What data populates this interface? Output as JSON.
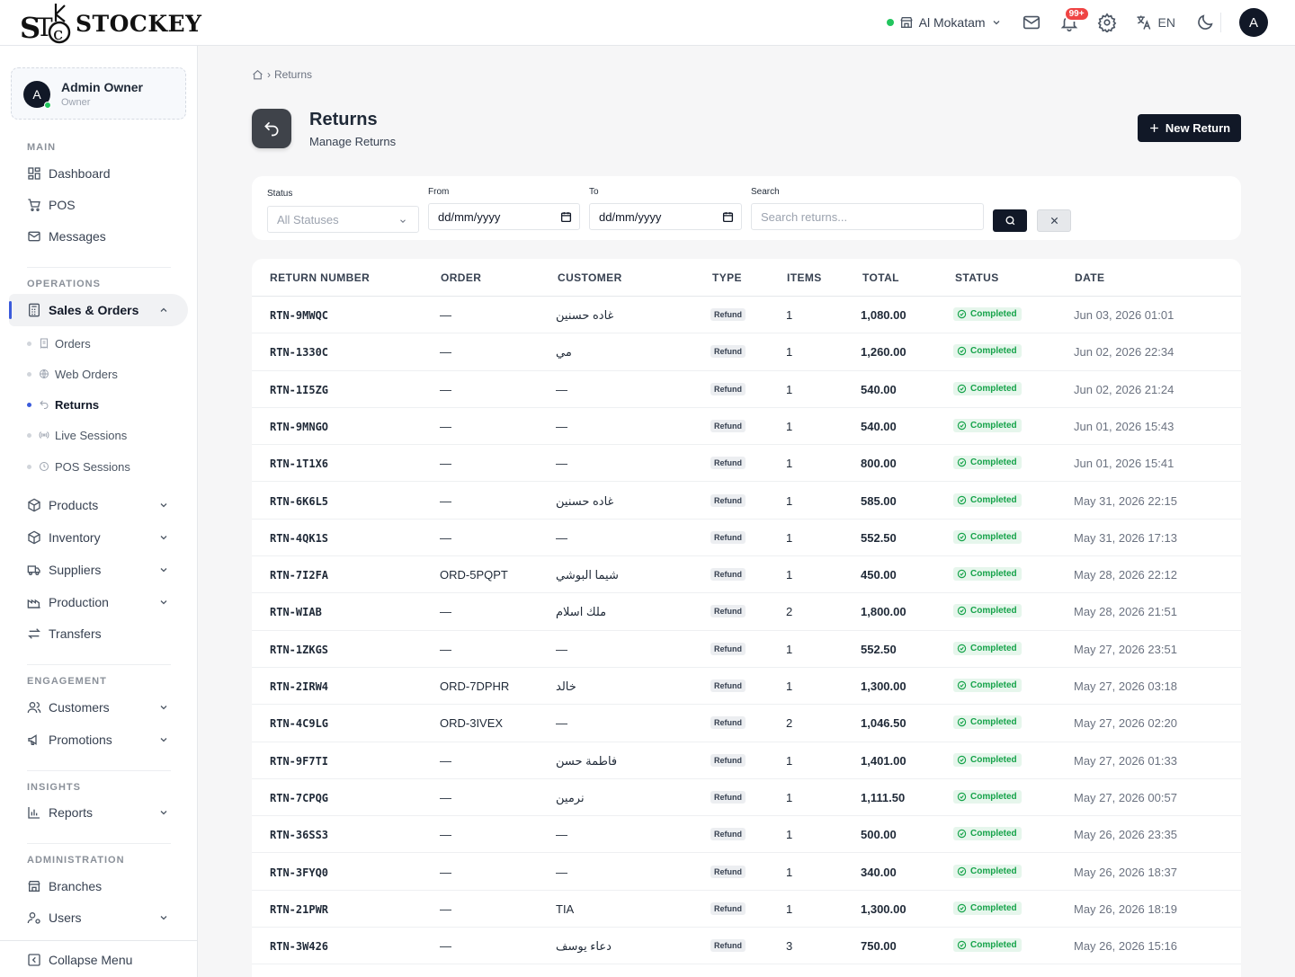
{
  "app": {
    "logo_text": "STOCKEY",
    "logo_mark": "STC"
  },
  "topbar": {
    "branch": "Al Mokatam",
    "notifications_badge": "99+",
    "language": "EN",
    "avatar_initial": "A"
  },
  "sidebar": {
    "user": {
      "initial": "A",
      "name": "Admin Owner",
      "role": "Owner"
    },
    "sections": {
      "main": "MAIN",
      "operations": "OPERATIONS",
      "engagement": "ENGAGEMENT",
      "insights": "INSIGHTS",
      "administration": "ADMINISTRATION"
    },
    "items": {
      "dashboard": "Dashboard",
      "pos": "POS",
      "messages": "Messages",
      "sales_orders": "Sales & Orders",
      "products": "Products",
      "inventory": "Inventory",
      "suppliers": "Suppliers",
      "production": "Production",
      "transfers": "Transfers",
      "customers": "Customers",
      "promotions": "Promotions",
      "reports": "Reports",
      "branches": "Branches",
      "users": "Users",
      "collapse": "Collapse Menu"
    },
    "sub_items": {
      "orders": "Orders",
      "web_orders": "Web Orders",
      "returns": "Returns",
      "live_sessions": "Live Sessions",
      "pos_sessions": "POS Sessions"
    }
  },
  "page": {
    "breadcrumb_current": "Returns",
    "title": "Returns",
    "subtitle": "Manage Returns",
    "new_button": "New Return"
  },
  "filters": {
    "status_label": "Status",
    "status_value": "All Statuses",
    "from_label": "From",
    "from_value": "dd/mm/yyyy",
    "to_label": "To",
    "to_value": "dd/mm/yyyy",
    "search_label": "Search",
    "search_placeholder": "Search returns..."
  },
  "table": {
    "headers": [
      "RETURN NUMBER",
      "ORDER",
      "CUSTOMER",
      "TYPE",
      "ITEMS",
      "TOTAL",
      "STATUS",
      "DATE"
    ],
    "rows": [
      {
        "number": "RTN-9MWQC",
        "order": "—",
        "customer": "غاده حسنين",
        "type": "Refund",
        "items": "1",
        "total": "1,080.00",
        "status": "Completed",
        "date": "Jun 03, 2026 01:01"
      },
      {
        "number": "RTN-1330C",
        "order": "—",
        "customer": "مي",
        "type": "Refund",
        "items": "1",
        "total": "1,260.00",
        "status": "Completed",
        "date": "Jun 02, 2026 22:34"
      },
      {
        "number": "RTN-1I5ZG",
        "order": "—",
        "customer": "—",
        "type": "Refund",
        "items": "1",
        "total": "540.00",
        "status": "Completed",
        "date": "Jun 02, 2026 21:24"
      },
      {
        "number": "RTN-9MNGO",
        "order": "—",
        "customer": "—",
        "type": "Refund",
        "items": "1",
        "total": "540.00",
        "status": "Completed",
        "date": "Jun 01, 2026 15:43"
      },
      {
        "number": "RTN-1T1X6",
        "order": "—",
        "customer": "—",
        "type": "Refund",
        "items": "1",
        "total": "800.00",
        "status": "Completed",
        "date": "Jun 01, 2026 15:41"
      },
      {
        "number": "RTN-6K6L5",
        "order": "—",
        "customer": "غاده حسنين",
        "type": "Refund",
        "items": "1",
        "total": "585.00",
        "status": "Completed",
        "date": "May 31, 2026 22:15"
      },
      {
        "number": "RTN-4QK1S",
        "order": "—",
        "customer": "—",
        "type": "Refund",
        "items": "1",
        "total": "552.50",
        "status": "Completed",
        "date": "May 31, 2026 17:13"
      },
      {
        "number": "RTN-7I2FA",
        "order": "ORD-5PQPT",
        "customer": "شيما البوشي",
        "type": "Refund",
        "items": "1",
        "total": "450.00",
        "status": "Completed",
        "date": "May 28, 2026 22:12"
      },
      {
        "number": "RTN-WIAB",
        "order": "—",
        "customer": "ملك اسلام",
        "type": "Refund",
        "items": "2",
        "total": "1,800.00",
        "status": "Completed",
        "date": "May 28, 2026 21:51"
      },
      {
        "number": "RTN-1ZKGS",
        "order": "—",
        "customer": "—",
        "type": "Refund",
        "items": "1",
        "total": "552.50",
        "status": "Completed",
        "date": "May 27, 2026 23:51"
      },
      {
        "number": "RTN-2IRW4",
        "order": "ORD-7DPHR",
        "customer": "خالد",
        "type": "Refund",
        "items": "1",
        "total": "1,300.00",
        "status": "Completed",
        "date": "May 27, 2026 03:18"
      },
      {
        "number": "RTN-4C9LG",
        "order": "ORD-3IVEX",
        "customer": "—",
        "type": "Refund",
        "items": "2",
        "total": "1,046.50",
        "status": "Completed",
        "date": "May 27, 2026 02:20"
      },
      {
        "number": "RTN-9F7TI",
        "order": "—",
        "customer": "فاطمة حسن",
        "type": "Refund",
        "items": "1",
        "total": "1,401.00",
        "status": "Completed",
        "date": "May 27, 2026 01:33"
      },
      {
        "number": "RTN-7CPQG",
        "order": "—",
        "customer": "نرمين",
        "type": "Refund",
        "items": "1",
        "total": "1,111.50",
        "status": "Completed",
        "date": "May 27, 2026 00:57"
      },
      {
        "number": "RTN-36SS3",
        "order": "—",
        "customer": "—",
        "type": "Refund",
        "items": "1",
        "total": "500.00",
        "status": "Completed",
        "date": "May 26, 2026 23:35"
      },
      {
        "number": "RTN-3FYQ0",
        "order": "—",
        "customer": "—",
        "type": "Refund",
        "items": "1",
        "total": "340.00",
        "status": "Completed",
        "date": "May 26, 2026 18:37"
      },
      {
        "number": "RTN-21PWR",
        "order": "—",
        "customer": "TIA",
        "type": "Refund",
        "items": "1",
        "total": "1,300.00",
        "status": "Completed",
        "date": "May 26, 2026 18:19"
      },
      {
        "number": "RTN-3W426",
        "order": "—",
        "customer": "دعاء يوسف",
        "type": "Refund",
        "items": "3",
        "total": "750.00",
        "status": "Completed",
        "date": "May 26, 2026 15:16"
      }
    ]
  }
}
